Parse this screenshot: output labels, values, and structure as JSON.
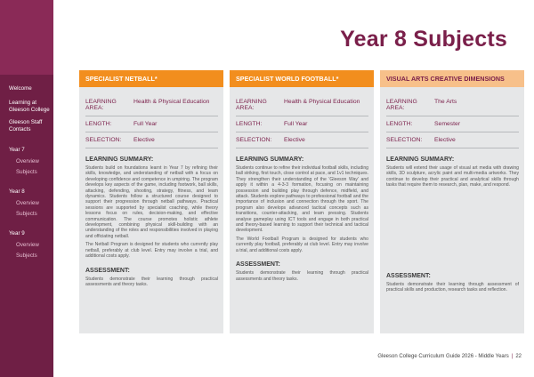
{
  "page": {
    "title": "Year 8 Subjects",
    "footer_text": "Gleeson College Curriculum Guide 2026 - Middle Years",
    "footer_separator": "|",
    "page_number": "22"
  },
  "colors": {
    "accent": "#7a1f4a",
    "sidebar": "#6f1f45",
    "header_orange": "#f28e1e",
    "header_peach": "#f7c08a",
    "panel": "#e6e7e8"
  },
  "sidebar": {
    "welcome": "Welcome",
    "learning": "Learning at Gleeson College",
    "staff": "Gleeson Staff Contacts",
    "year7": "Year 7",
    "year7_overview": "Overview",
    "year7_subjects": "Subjects",
    "year8": "Year 8",
    "year8_overview": "Overview",
    "year8_subjects": "Subjects",
    "year9": "Year 9",
    "year9_overview": "Overview",
    "year9_subjects": "Subjects"
  },
  "columns": [
    {
      "header": "SPECIALIST NETBALL*",
      "learning_area_label": "LEARNING AREA:",
      "learning_area": "Health & Physical Education",
      "length_label": "LENGTH:",
      "length": "Full Year",
      "selection_label": "SELECTION:",
      "selection": "Elective",
      "summary_title": "LEARNING SUMMARY:",
      "summary_1": "Students build on foundations learnt in Year 7 by refining their skills, knowledge, and understanding of netball with a focus on developing confidence and competence in umpiring. The program develops key aspects of the game, including footwork, ball skills, attacking, defending, shooting, strategy, fitness, and team dynamics. Students follow a structured course designed to support their progression through netball pathways. Practical sessions are supported by specialist coaching, while theory lessons focus on rules, decision-making, and effective communication. The course promotes holistic athlete development, combining physical skill-building with an understanding of the roles and responsibilities involved in playing and officiating netball.",
      "summary_2": "The Netball Program is designed for students who currently play netball, preferably at club level. Entry may involve a trial, and additional costs apply.",
      "assessment_title": "ASSESSMENT:",
      "assessment": "Students demonstrate their learning through practical assessments and theory tasks."
    },
    {
      "header": "SPECIALIST WORLD FOOTBALL*",
      "learning_area_label": "LEARNING AREA:",
      "learning_area": "Health & Physical Education",
      "length_label": "LENGTH:",
      "length": "Full Year",
      "selection_label": "SELECTION:",
      "selection": "Elective",
      "summary_title": "LEARNING SUMMARY:",
      "summary_1": "Students continue to refine their individual football skills, including ball striking, first touch, close control at pace, and 1v1 techniques. They strengthen their understanding of the 'Gleeson Way' and apply it within a 4-3-3 formation, focusing on maintaining possession and building play through defence, midfield, and attack. Students explore pathways to professional football and the importance of inclusion and connection through the sport. The program also develops advanced tactical concepts such as transitions, counter-attacking, and team pressing. Students analyse gameplay using ICT tools and engage in both practical and theory-based learning to support their technical and tactical development.",
      "summary_2": "The World Football Program is designed for students who currently play football, preferably at club level. Entry may involve a trial, and additional costs apply.",
      "assessment_title": "ASSESSMENT:",
      "assessment": "Students demonstrate their learning through practical assessments and theory tasks."
    },
    {
      "header": "VISUAL ARTS CREATIVE DIMENSIONS",
      "learning_area_label": "LEARNING AREA:",
      "learning_area": "The Arts",
      "length_label": "LENGTH:",
      "length": "Semester",
      "selection_label": "SELECTION:",
      "selection": "Elective",
      "summary_title": "LEARNING SUMMARY:",
      "summary_1": "Students will extend their usage of visual art media with drawing skills, 3D sculpture, acrylic paint and multi-media artworks. They continue to develop their practical and analytical skills through tasks that require them to research, plan, make, and respond.",
      "summary_2": "",
      "assessment_title": "ASSESSMENT:",
      "assessment": "Students demonstrate their learning through assessment of practical skills and production, research tasks and reflection."
    }
  ]
}
